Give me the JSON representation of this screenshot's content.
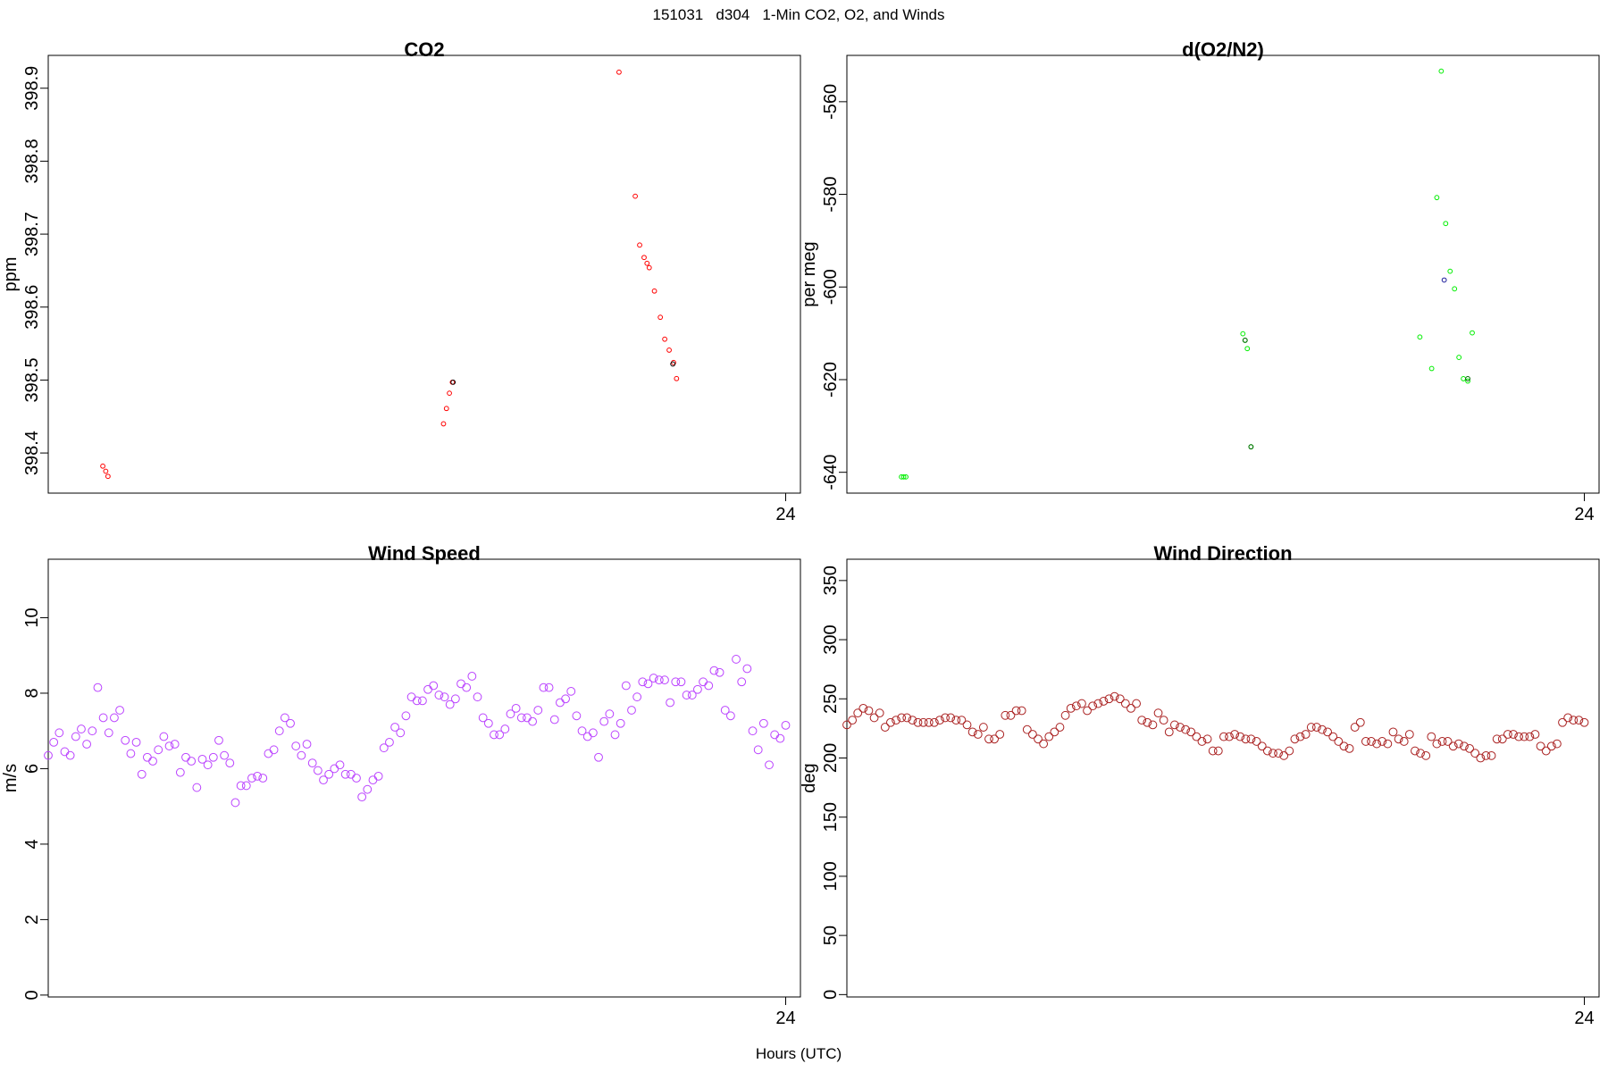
{
  "page_title": "151031   d304   1-Min CO2, O2, and Winds",
  "x_axis_label": "Hours (UTC)",
  "chart_data": [
    {
      "id": "co2",
      "type": "scatter",
      "title": "CO2",
      "xlabel": "",
      "ylabel": "ppm",
      "xlim": [
        23.0,
        24.02
      ],
      "ylim": [
        398.345,
        398.945
      ],
      "yticks": [
        398.4,
        398.5,
        398.6,
        398.7,
        398.8,
        398.9
      ],
      "xticks": [
        24
      ],
      "series": [
        {
          "color": "#ff0000",
          "points": [
            [
              23.074,
              398.382
            ],
            [
              23.078,
              398.375
            ],
            [
              23.081,
              398.368
            ],
            [
              23.536,
              398.44
            ],
            [
              23.54,
              398.461
            ],
            [
              23.544,
              398.482
            ],
            [
              23.548,
              398.497
            ],
            [
              23.774,
              398.922
            ],
            [
              23.796,
              398.752
            ],
            [
              23.802,
              398.685
            ],
            [
              23.808,
              398.668
            ],
            [
              23.812,
              398.66
            ],
            [
              23.815,
              398.654
            ],
            [
              23.822,
              398.622
            ],
            [
              23.83,
              398.586
            ],
            [
              23.836,
              398.556
            ],
            [
              23.842,
              398.541
            ],
            [
              23.848,
              398.524
            ],
            [
              23.852,
              398.502
            ]
          ]
        },
        {
          "color": "#000000",
          "points": [
            [
              23.549,
              398.497
            ],
            [
              23.847,
              398.522
            ]
          ]
        }
      ]
    },
    {
      "id": "o2",
      "type": "scatter",
      "title": "d(O2/N2)",
      "xlabel": "",
      "ylabel": "per meg",
      "xlim": [
        23.0,
        24.02
      ],
      "ylim": [
        -644.5,
        -550
      ],
      "yticks": [
        -640,
        -620,
        -600,
        -580,
        -560
      ],
      "xticks": [
        24
      ],
      "series": [
        {
          "color": "#00ee00",
          "points": [
            [
              23.074,
              -641.0
            ],
            [
              23.077,
              -641.0
            ],
            [
              23.08,
              -641.0
            ],
            [
              23.537,
              -610.1
            ],
            [
              23.54,
              -611.5
            ],
            [
              23.543,
              -613.3
            ],
            [
              23.548,
              -634.5
            ],
            [
              23.777,
              -610.8
            ],
            [
              23.793,
              -617.6
            ],
            [
              23.8,
              -580.7
            ],
            [
              23.806,
              -553.4
            ],
            [
              23.812,
              -586.3
            ],
            [
              23.818,
              -596.6
            ],
            [
              23.824,
              -600.4
            ],
            [
              23.83,
              -615.2
            ],
            [
              23.836,
              -619.8
            ],
            [
              23.842,
              -620.3
            ],
            [
              23.848,
              -609.9
            ]
          ]
        },
        {
          "color": "#006600",
          "points": [
            [
              23.54,
              -611.5
            ],
            [
              23.548,
              -634.5
            ],
            [
              23.842,
              -619.8
            ]
          ]
        },
        {
          "color": "#1a1a9a",
          "points": [
            [
              23.81,
              -598.5
            ]
          ]
        }
      ]
    },
    {
      "id": "wind-speed",
      "type": "scatter",
      "title": "Wind Speed",
      "xlabel": "",
      "ylabel": "m/s",
      "xlim": [
        23.0,
        24.02
      ],
      "ylim": [
        -0.05,
        11.55
      ],
      "yticks": [
        0,
        2,
        4,
        6,
        8,
        10
      ],
      "xticks": [
        24
      ],
      "series": [
        {
          "color": "#bb44ff",
          "values": [
            6.35,
            6.7,
            6.95,
            6.45,
            6.35,
            6.85,
            7.05,
            6.65,
            7.0,
            8.15,
            7.35,
            6.95,
            7.35,
            7.55,
            6.75,
            6.4,
            6.7,
            5.85,
            6.3,
            6.2,
            6.5,
            6.85,
            6.6,
            6.65,
            5.9,
            6.3,
            6.2,
            5.5,
            6.25,
            6.1,
            6.3,
            6.75,
            6.35,
            6.15,
            5.1,
            5.55,
            5.55,
            5.75,
            5.8,
            5.75,
            6.4,
            6.5,
            7.0,
            7.35,
            7.2,
            6.6,
            6.35,
            6.65,
            6.15,
            5.95,
            5.7,
            5.85,
            6.0,
            6.1,
            5.85,
            5.85,
            5.75,
            5.25,
            5.45,
            5.7,
            5.8,
            6.55,
            6.7,
            7.1,
            6.95,
            7.4,
            7.9,
            7.8,
            7.8,
            8.1,
            8.2,
            7.95,
            7.9,
            7.7,
            7.85,
            8.25,
            8.15,
            8.45,
            7.9,
            7.35,
            7.2,
            6.9,
            6.9,
            7.05,
            7.45,
            7.6,
            7.35,
            7.35,
            7.25,
            7.55,
            8.15,
            8.15,
            7.3,
            7.75,
            7.85,
            8.05,
            7.4,
            7.0,
            6.85,
            6.95,
            6.3,
            7.25,
            7.45,
            6.9,
            7.2,
            8.2,
            7.55,
            7.9,
            8.3,
            8.25,
            8.4,
            8.35,
            8.35,
            7.75,
            8.3,
            8.3,
            7.95,
            7.95,
            8.1,
            8.3,
            8.2,
            8.6,
            8.55,
            7.55,
            7.4,
            8.9,
            8.3,
            8.65,
            7.0,
            6.5,
            7.2,
            6.1,
            6.9,
            6.8,
            7.15
          ]
        }
      ]
    },
    {
      "id": "wind-direction",
      "type": "scatter",
      "title": "Wind Direction",
      "xlabel": "",
      "ylabel": "deg",
      "xlim": [
        23.0,
        24.02
      ],
      "ylim": [
        -2,
        368
      ],
      "yticks": [
        0,
        50,
        100,
        150,
        200,
        250,
        300,
        350
      ],
      "xticks": [
        24
      ],
      "series": [
        {
          "color": "#aa2222",
          "values": [
            228,
            232,
            238,
            242,
            240,
            234,
            238,
            226,
            230,
            232,
            234,
            234,
            232,
            230,
            230,
            230,
            230,
            232,
            234,
            234,
            232,
            232,
            228,
            222,
            220,
            226,
            216,
            216,
            220,
            236,
            236,
            240,
            240,
            224,
            220,
            216,
            212,
            218,
            222,
            226,
            236,
            242,
            244,
            246,
            240,
            244,
            246,
            248,
            250,
            252,
            250,
            246,
            242,
            246,
            232,
            230,
            228,
            238,
            232,
            222,
            228,
            226,
            224,
            222,
            218,
            214,
            216,
            206,
            206,
            218,
            218,
            220,
            218,
            216,
            216,
            214,
            210,
            206,
            204,
            204,
            202,
            206,
            216,
            218,
            220,
            226,
            226,
            224,
            222,
            218,
            214,
            210,
            208,
            226,
            230,
            214,
            214,
            212,
            214,
            212,
            222,
            216,
            214,
            220,
            206,
            204,
            202,
            218,
            212,
            214,
            214,
            210,
            212,
            210,
            208,
            204,
            200,
            202,
            202,
            216,
            216,
            220,
            220,
            218,
            218,
            218,
            220,
            210,
            206,
            210,
            212,
            230,
            234,
            232,
            232,
            230
          ]
        }
      ]
    }
  ]
}
